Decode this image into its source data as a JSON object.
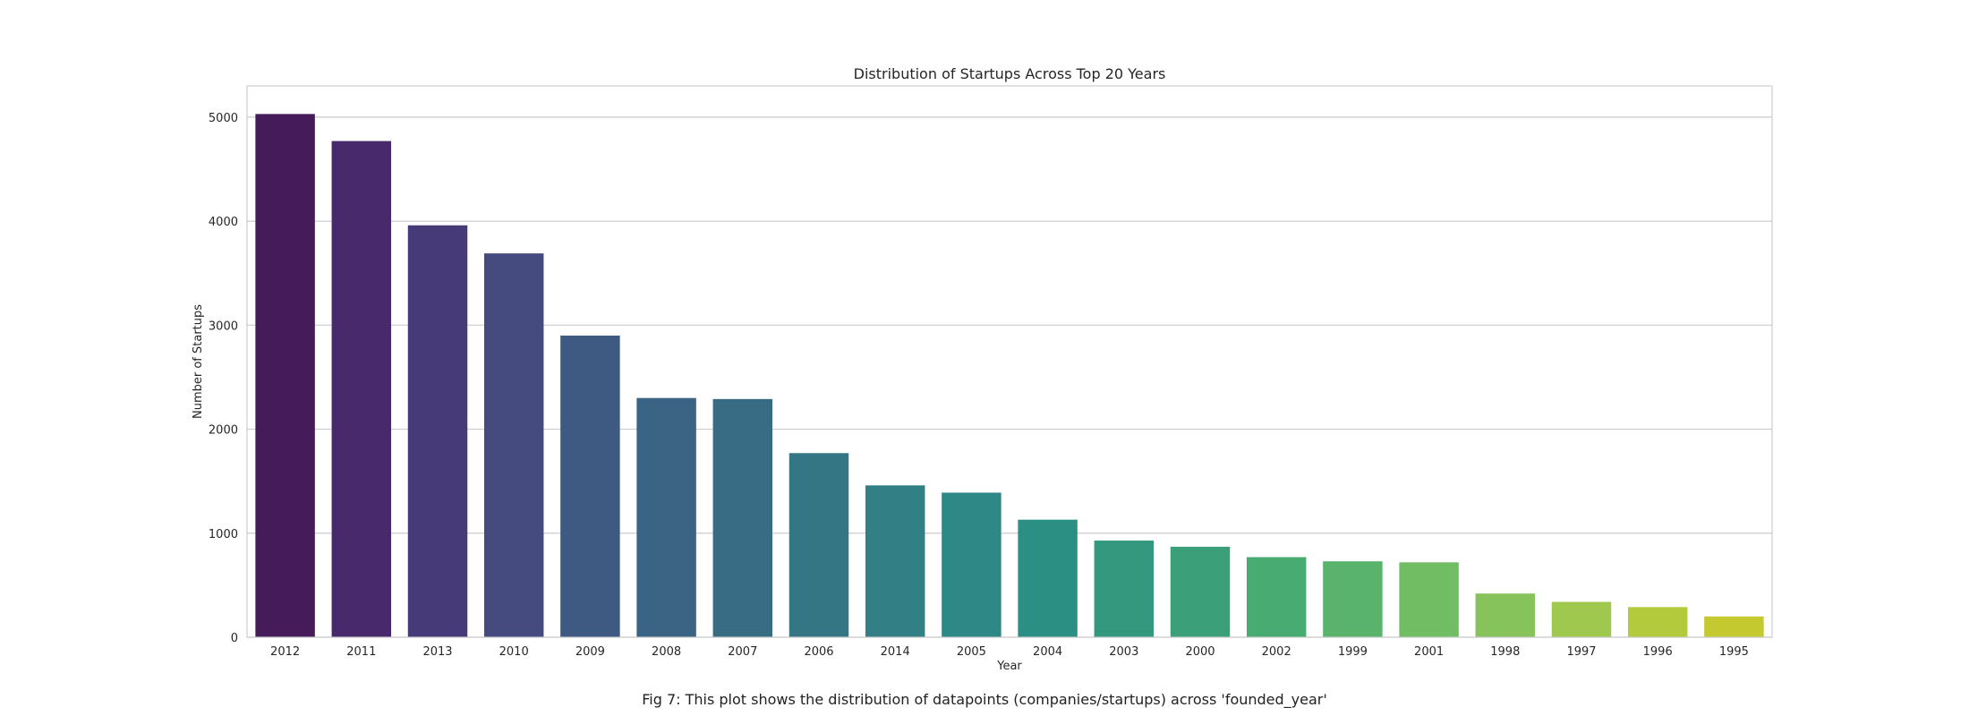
{
  "chart_data": {
    "type": "bar",
    "title": "Distribution of Startups Across Top 20 Years",
    "xlabel": "Year",
    "ylabel": "Number of Startups",
    "categories": [
      "2012",
      "2011",
      "2013",
      "2010",
      "2009",
      "2008",
      "2007",
      "2006",
      "2014",
      "2005",
      "2004",
      "2003",
      "2000",
      "2002",
      "1999",
      "2001",
      "1998",
      "1997",
      "1996",
      "1995"
    ],
    "values": [
      5030,
      4770,
      3960,
      3690,
      2900,
      2300,
      2290,
      1770,
      1460,
      1390,
      1130,
      930,
      870,
      770,
      730,
      720,
      420,
      340,
      290,
      200
    ],
    "ylim": [
      0,
      5300
    ],
    "yticks": [
      0,
      1000,
      2000,
      3000,
      4000,
      5000
    ],
    "grid": "horizontal",
    "palette": "viridis",
    "colors": [
      "#451c59",
      "#482a6c",
      "#463a78",
      "#454a7f",
      "#3f5a82",
      "#3b6383",
      "#386c84",
      "#357685",
      "#327f86",
      "#2e8886",
      "#2b9083",
      "#33987e",
      "#3ba07a",
      "#47ab72",
      "#59b36c",
      "#70bd64",
      "#86c35a",
      "#9fc84e",
      "#b3ca3c",
      "#c4c930"
    ]
  },
  "caption": "Fig 7: This plot shows the distribution of datapoints (companies/startups) across 'founded_year'"
}
